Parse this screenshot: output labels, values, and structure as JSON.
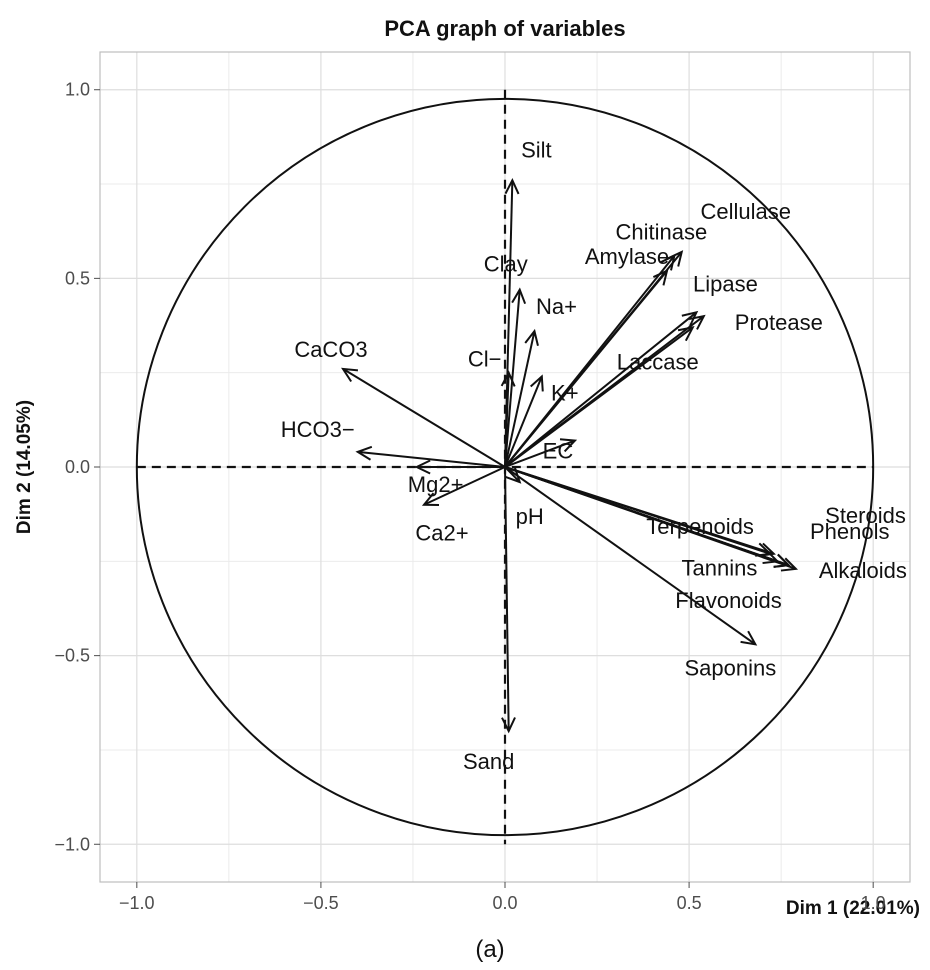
{
  "chart_data": {
    "type": "scatter",
    "title": "PCA graph of variables",
    "xlabel": "Dim 1 (22.01%)",
    "ylabel": "Dim 2 (14.05%)",
    "caption": "(a)",
    "xlim": [
      -1.1,
      1.1
    ],
    "ylim": [
      -1.1,
      1.1
    ],
    "xticks": [
      -1.0,
      -0.5,
      0.0,
      0.5,
      1.0
    ],
    "yticks": [
      -1.0,
      -0.5,
      0.0,
      0.5,
      1.0
    ],
    "xtick_labels": [
      "−1.0",
      "−0.5",
      "0.0",
      "0.5",
      "1.0"
    ],
    "ytick_labels": [
      "−1.0",
      "−0.5",
      "0.0",
      "0.5",
      "1.0"
    ],
    "grid": true,
    "unit_circle": true,
    "arrows": [
      {
        "label": "Silt",
        "x": 0.02,
        "y": 0.76
      },
      {
        "label": "Clay",
        "x": 0.04,
        "y": 0.47
      },
      {
        "label": "Na+",
        "x": 0.08,
        "y": 0.36
      },
      {
        "label": "Cl−",
        "x": 0.01,
        "y": 0.25
      },
      {
        "label": "K+",
        "x": 0.1,
        "y": 0.24
      },
      {
        "label": "EC",
        "x": 0.19,
        "y": 0.07
      },
      {
        "label": "pH",
        "x": 0.04,
        "y": -0.04
      },
      {
        "label": "Sand",
        "x": 0.01,
        "y": -0.7
      },
      {
        "label": "CaCO3",
        "x": -0.44,
        "y": 0.26
      },
      {
        "label": "HCO3−",
        "x": -0.4,
        "y": 0.04
      },
      {
        "label": "Mg2+",
        "x": -0.24,
        "y": 0.0
      },
      {
        "label": "Ca2+",
        "x": -0.22,
        "y": -0.1
      },
      {
        "label": "Cellulase",
        "x": 0.48,
        "y": 0.57
      },
      {
        "label": "Chitinase",
        "x": 0.46,
        "y": 0.56
      },
      {
        "label": "Amylase",
        "x": 0.44,
        "y": 0.52
      },
      {
        "label": "Lipase",
        "x": 0.52,
        "y": 0.41
      },
      {
        "label": "Protease",
        "x": 0.54,
        "y": 0.4
      },
      {
        "label": "Laccase",
        "x": 0.51,
        "y": 0.37
      },
      {
        "label": "Steroids",
        "x": 0.77,
        "y": -0.26
      },
      {
        "label": "Phenols",
        "x": 0.73,
        "y": -0.23
      },
      {
        "label": "Terpenoids",
        "x": 0.72,
        "y": -0.23
      },
      {
        "label": "Alkaloids",
        "x": 0.79,
        "y": -0.27
      },
      {
        "label": "Tannins",
        "x": 0.74,
        "y": -0.25
      },
      {
        "label": "Flavonoids",
        "x": 0.77,
        "y": -0.26
      },
      {
        "label": "Saponins",
        "x": 0.68,
        "y": -0.47
      }
    ]
  }
}
